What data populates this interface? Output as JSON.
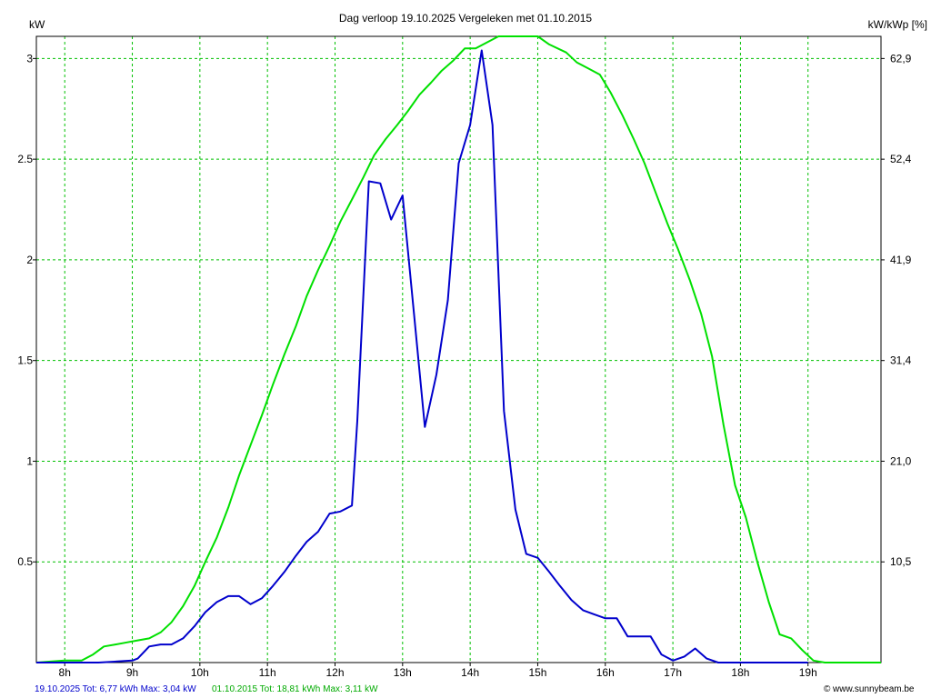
{
  "chart_data": {
    "type": "line",
    "title": "Dag  verloop 19.10.2025   Vergeleken met 01.10.2015",
    "ylabel_left": "kW",
    "ylabel_right": "kW/kWp [%]",
    "x_ticks": [
      "8h",
      "9h",
      "10h",
      "11h",
      "12h",
      "13h",
      "14h",
      "15h",
      "16h",
      "17h",
      "18h",
      "19h"
    ],
    "x_range_hours": [
      7.58,
      20.08
    ],
    "y_range": [
      0,
      3.11
    ],
    "y_ticks_left": [
      {
        "value": 0.5,
        "label": "0.5"
      },
      {
        "value": 1.0,
        "label": "1"
      },
      {
        "value": 1.5,
        "label": "1.5"
      },
      {
        "value": 2.0,
        "label": "2"
      },
      {
        "value": 2.5,
        "label": "2.5"
      },
      {
        "value": 3.0,
        "label": "3"
      }
    ],
    "y_ticks_right": [
      {
        "value": 0.5,
        "label": "10,5"
      },
      {
        "value": 1.0,
        "label": "21,0"
      },
      {
        "value": 1.5,
        "label": "31,4"
      },
      {
        "value": 2.0,
        "label": "41,9"
      },
      {
        "value": 2.5,
        "label": "52,4"
      },
      {
        "value": 3.0,
        "label": "62,9"
      }
    ],
    "grid": true,
    "series": [
      {
        "name": "19.10.2025",
        "color": "#0000cc",
        "points": [
          [
            7.58,
            0.0
          ],
          [
            8.5,
            0.0
          ],
          [
            9.0,
            0.01
          ],
          [
            9.08,
            0.02
          ],
          [
            9.25,
            0.08
          ],
          [
            9.42,
            0.09
          ],
          [
            9.58,
            0.09
          ],
          [
            9.75,
            0.12
          ],
          [
            9.92,
            0.18
          ],
          [
            10.08,
            0.25
          ],
          [
            10.25,
            0.3
          ],
          [
            10.42,
            0.33
          ],
          [
            10.58,
            0.33
          ],
          [
            10.75,
            0.29
          ],
          [
            10.92,
            0.32
          ],
          [
            11.08,
            0.38
          ],
          [
            11.25,
            0.45
          ],
          [
            11.42,
            0.53
          ],
          [
            11.58,
            0.6
          ],
          [
            11.75,
            0.65
          ],
          [
            11.92,
            0.74
          ],
          [
            12.08,
            0.75
          ],
          [
            12.25,
            0.78
          ],
          [
            12.33,
            1.2
          ],
          [
            12.5,
            2.39
          ],
          [
            12.67,
            2.38
          ],
          [
            12.83,
            2.2
          ],
          [
            13.0,
            2.32
          ],
          [
            13.17,
            1.73
          ],
          [
            13.33,
            1.17
          ],
          [
            13.5,
            1.43
          ],
          [
            13.67,
            1.8
          ],
          [
            13.83,
            2.48
          ],
          [
            14.0,
            2.67
          ],
          [
            14.17,
            3.04
          ],
          [
            14.33,
            2.67
          ],
          [
            14.5,
            1.25
          ],
          [
            14.67,
            0.76
          ],
          [
            14.83,
            0.54
          ],
          [
            15.0,
            0.52
          ],
          [
            15.17,
            0.45
          ],
          [
            15.33,
            0.38
          ],
          [
            15.5,
            0.31
          ],
          [
            15.67,
            0.26
          ],
          [
            15.83,
            0.24
          ],
          [
            16.0,
            0.22
          ],
          [
            16.17,
            0.22
          ],
          [
            16.33,
            0.13
          ],
          [
            16.5,
            0.13
          ],
          [
            16.67,
            0.13
          ],
          [
            16.83,
            0.04
          ],
          [
            17.0,
            0.01
          ],
          [
            17.17,
            0.03
          ],
          [
            17.33,
            0.07
          ],
          [
            17.5,
            0.02
          ],
          [
            17.67,
            0.0
          ],
          [
            19.0,
            0.0
          ]
        ]
      },
      {
        "name": "01.10.2015",
        "color": "#00e000",
        "points": [
          [
            7.58,
            0.0
          ],
          [
            8.0,
            0.01
          ],
          [
            8.25,
            0.01
          ],
          [
            8.42,
            0.04
          ],
          [
            8.58,
            0.08
          ],
          [
            8.75,
            0.09
          ],
          [
            8.92,
            0.1
          ],
          [
            9.08,
            0.11
          ],
          [
            9.25,
            0.12
          ],
          [
            9.42,
            0.15
          ],
          [
            9.58,
            0.2
          ],
          [
            9.75,
            0.28
          ],
          [
            9.92,
            0.38
          ],
          [
            10.08,
            0.5
          ],
          [
            10.25,
            0.62
          ],
          [
            10.42,
            0.77
          ],
          [
            10.58,
            0.93
          ],
          [
            10.75,
            1.08
          ],
          [
            10.92,
            1.23
          ],
          [
            11.08,
            1.38
          ],
          [
            11.25,
            1.53
          ],
          [
            11.42,
            1.67
          ],
          [
            11.58,
            1.82
          ],
          [
            11.75,
            1.95
          ],
          [
            11.92,
            2.07
          ],
          [
            12.08,
            2.19
          ],
          [
            12.25,
            2.3
          ],
          [
            12.42,
            2.41
          ],
          [
            12.58,
            2.52
          ],
          [
            12.75,
            2.6
          ],
          [
            12.92,
            2.67
          ],
          [
            13.08,
            2.74
          ],
          [
            13.25,
            2.82
          ],
          [
            13.42,
            2.88
          ],
          [
            13.58,
            2.94
          ],
          [
            13.75,
            2.99
          ],
          [
            13.92,
            3.05
          ],
          [
            14.08,
            3.05
          ],
          [
            14.25,
            3.08
          ],
          [
            14.42,
            3.11
          ],
          [
            15.0,
            3.11
          ],
          [
            15.17,
            3.07
          ],
          [
            15.42,
            3.03
          ],
          [
            15.58,
            2.98
          ],
          [
            15.75,
            2.95
          ],
          [
            15.92,
            2.92
          ],
          [
            16.08,
            2.83
          ],
          [
            16.25,
            2.72
          ],
          [
            16.42,
            2.6
          ],
          [
            16.58,
            2.48
          ],
          [
            16.75,
            2.33
          ],
          [
            16.92,
            2.18
          ],
          [
            17.08,
            2.05
          ],
          [
            17.25,
            1.9
          ],
          [
            17.42,
            1.73
          ],
          [
            17.58,
            1.52
          ],
          [
            17.75,
            1.18
          ],
          [
            17.92,
            0.88
          ],
          [
            18.08,
            0.72
          ],
          [
            18.25,
            0.5
          ],
          [
            18.42,
            0.3
          ],
          [
            18.58,
            0.14
          ],
          [
            18.75,
            0.12
          ],
          [
            18.92,
            0.06
          ],
          [
            19.08,
            0.01
          ],
          [
            19.25,
            0.0
          ],
          [
            20.08,
            0.0
          ]
        ]
      }
    ],
    "footer": {
      "series1_text": "19.10.2025 Tot: 6,77 kWh Max: 3,04 kW",
      "series2_text": "01.10.2015 Tot: 18,81 kWh Max: 3,11 kW",
      "credit_icon": "©",
      "credit_text": "www.sunnybeam.be"
    }
  }
}
